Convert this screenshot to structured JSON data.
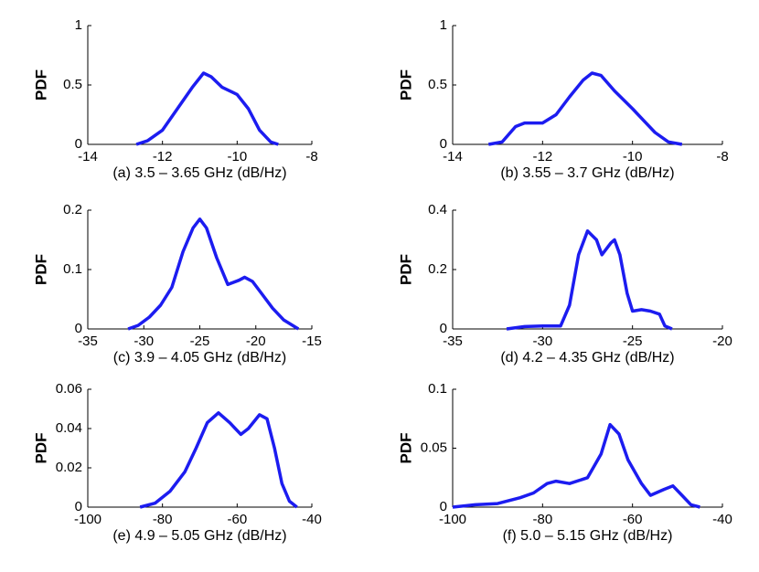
{
  "chart_data": [
    {
      "type": "line",
      "y_label": "PDF",
      "x_label": "(a) 3.5 – 3.65 GHz (dB/Hz)",
      "color": "#1c1cf0",
      "xlim": [
        -14,
        -8
      ],
      "xticks": [
        -14,
        -12,
        -10,
        -8
      ],
      "ylim": [
        0,
        1
      ],
      "yticks": [
        0,
        0.5,
        1
      ],
      "x": [
        -12.7,
        -12.4,
        -12,
        -11.6,
        -11.2,
        -10.9,
        -10.7,
        -10.4,
        -10,
        -9.7,
        -9.4,
        -9.1,
        -8.9
      ],
      "values": [
        0,
        0.03,
        0.12,
        0.3,
        0.48,
        0.6,
        0.57,
        0.48,
        0.42,
        0.3,
        0.12,
        0.02,
        0
      ]
    },
    {
      "type": "line",
      "y_label": "PDF",
      "x_label": "(b) 3.55 – 3.7 GHz (dB/Hz)",
      "color": "#1c1cf0",
      "xlim": [
        -14,
        -8
      ],
      "xticks": [
        -14,
        -12,
        -10,
        -8
      ],
      "ylim": [
        0,
        1
      ],
      "yticks": [
        0,
        0.5,
        1
      ],
      "x": [
        -13.2,
        -12.9,
        -12.6,
        -12.4,
        -12,
        -11.7,
        -11.4,
        -11.1,
        -10.9,
        -10.7,
        -10.4,
        -10,
        -9.7,
        -9.5,
        -9.2,
        -8.9
      ],
      "values": [
        0,
        0.02,
        0.15,
        0.18,
        0.18,
        0.25,
        0.4,
        0.54,
        0.6,
        0.58,
        0.45,
        0.3,
        0.18,
        0.1,
        0.02,
        0
      ]
    },
    {
      "type": "line",
      "y_label": "PDF",
      "x_label": "(c) 3.9 – 4.05 GHz (dB/Hz)",
      "color": "#1c1cf0",
      "xlim": [
        -35,
        -15
      ],
      "xticks": [
        -35,
        -30,
        -25,
        -20,
        -15
      ],
      "ylim": [
        0,
        0.2
      ],
      "yticks": [
        0,
        0.1,
        0.2
      ],
      "x": [
        -31.4,
        -30.5,
        -29.5,
        -28.5,
        -27.5,
        -26.5,
        -25.6,
        -25,
        -24.4,
        -23.5,
        -22.5,
        -21.5,
        -21,
        -20.3,
        -19.5,
        -18.5,
        -17.5,
        -16.2
      ],
      "values": [
        0,
        0.006,
        0.02,
        0.04,
        0.07,
        0.13,
        0.17,
        0.185,
        0.17,
        0.12,
        0.075,
        0.082,
        0.087,
        0.08,
        0.06,
        0.035,
        0.015,
        0
      ]
    },
    {
      "type": "line",
      "y_label": "PDF",
      "x_label": "(d) 4.2 – 4.35 GHz (dB/Hz)",
      "color": "#1c1cf0",
      "xlim": [
        -35,
        -20
      ],
      "xticks": [
        -35,
        -30,
        -25,
        -20
      ],
      "ylim": [
        0,
        0.4
      ],
      "yticks": [
        0,
        0.2,
        0.4
      ],
      "x": [
        -32,
        -31,
        -30,
        -29,
        -28.5,
        -28,
        -27.5,
        -27,
        -26.7,
        -26.2,
        -26,
        -25.7,
        -25.3,
        -25,
        -24.5,
        -24,
        -23.5,
        -23.2,
        -22.8
      ],
      "values": [
        0,
        0.008,
        0.01,
        0.01,
        0.08,
        0.25,
        0.33,
        0.3,
        0.25,
        0.29,
        0.3,
        0.25,
        0.12,
        0.06,
        0.065,
        0.06,
        0.05,
        0.01,
        0
      ]
    },
    {
      "type": "line",
      "y_label": "PDF",
      "x_label": "(e) 4.9 – 5.05 GHz (dB/Hz)",
      "color": "#1c1cf0",
      "xlim": [
        -100,
        -40
      ],
      "xticks": [
        -100,
        -80,
        -60,
        -40
      ],
      "ylim": [
        0,
        0.06
      ],
      "yticks": [
        0,
        0.02,
        0.04,
        0.06
      ],
      "x": [
        -86,
        -82,
        -78,
        -74,
        -71,
        -68,
        -65,
        -62,
        -59,
        -57,
        -54,
        -52,
        -50,
        -48,
        -46,
        -44
      ],
      "values": [
        0,
        0.002,
        0.008,
        0.018,
        0.03,
        0.043,
        0.048,
        0.043,
        0.037,
        0.04,
        0.047,
        0.045,
        0.03,
        0.012,
        0.003,
        0
      ]
    },
    {
      "type": "line",
      "y_label": "PDF",
      "x_label": "(f) 5.0 – 5.15 GHz (dB/Hz)",
      "color": "#1c1cf0",
      "xlim": [
        -100,
        -40
      ],
      "xticks": [
        -100,
        -80,
        -60,
        -40
      ],
      "ylim": [
        0,
        0.1
      ],
      "yticks": [
        0,
        0.05,
        0.1
      ],
      "x": [
        -100,
        -95,
        -90,
        -85,
        -82,
        -79,
        -77,
        -74,
        -70,
        -67,
        -65,
        -63,
        -61,
        -58,
        -56,
        -53,
        -51,
        -49,
        -47,
        -45
      ],
      "values": [
        0,
        0.002,
        0.003,
        0.008,
        0.012,
        0.02,
        0.022,
        0.02,
        0.025,
        0.045,
        0.07,
        0.062,
        0.04,
        0.02,
        0.01,
        0.015,
        0.018,
        0.01,
        0.002,
        0
      ]
    }
  ]
}
